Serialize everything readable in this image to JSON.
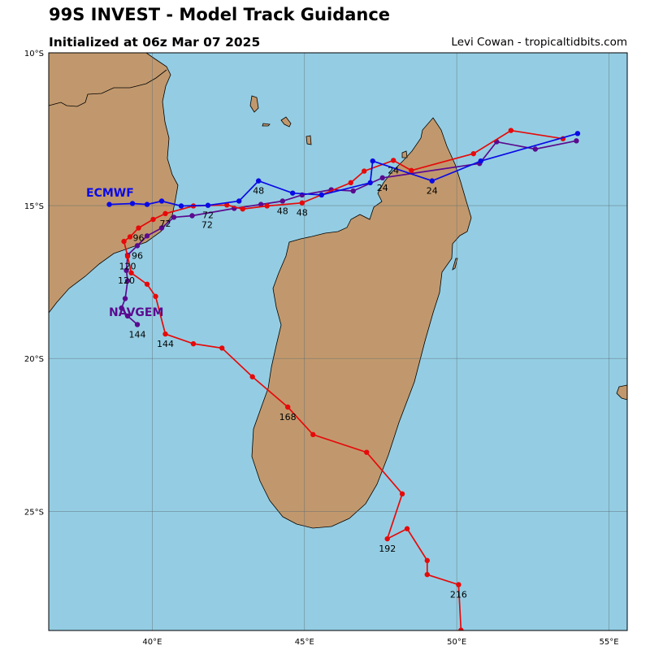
{
  "header": {
    "title": "99S INVEST - Model Track Guidance",
    "subtitle": "Initialized at 06z Mar 07 2025",
    "credit": "Levi Cowan - tropicaltidbits.com"
  },
  "colors": {
    "ocean": "#94cde3",
    "land": "#c1986d",
    "grid": "#5a6a70",
    "ecmwf": "#0a0ae6",
    "navgem": "#5b0a8f",
    "gfs": "#e60a0a"
  },
  "axes": {
    "lon_range": [
      36.6,
      55.6
    ],
    "lat_range": [
      -10.0,
      -28.9
    ],
    "lon_ticks": [
      {
        "value": 40,
        "label": "40°E"
      },
      {
        "value": 45,
        "label": "45°E"
      },
      {
        "value": 50,
        "label": "50°E"
      },
      {
        "value": 55,
        "label": "55°E"
      }
    ],
    "lat_ticks": [
      {
        "value": -10,
        "label": "10°S"
      },
      {
        "value": -15,
        "label": "15°S"
      },
      {
        "value": -20,
        "label": "20°S"
      },
      {
        "value": -25,
        "label": "25°S"
      }
    ]
  },
  "chart_data": {
    "type": "scatter",
    "description_units": "longitude °E, latitude (negative = °S)",
    "series": [
      {
        "name": "ECMWF",
        "color_key": "ecmwf",
        "label": "ECMWF",
        "points": [
          [
            53.97,
            -12.64
          ],
          [
            50.79,
            -13.54
          ],
          [
            49.19,
            -14.19
          ],
          [
            47.24,
            -13.54
          ],
          [
            47.16,
            -14.25
          ],
          [
            45.56,
            -14.65
          ],
          [
            44.61,
            -14.59
          ],
          [
            43.49,
            -14.19
          ],
          [
            42.85,
            -14.85
          ],
          [
            41.83,
            -14.99
          ],
          [
            40.95,
            -15.01
          ],
          [
            40.31,
            -14.85
          ],
          [
            39.83,
            -14.96
          ],
          [
            39.35,
            -14.93
          ],
          [
            38.59,
            -14.96
          ]
        ],
        "hour_labels": [
          {
            "text": "24",
            "lon": 49.19,
            "lat": -14.19
          },
          {
            "text": "48",
            "lon": 43.49,
            "lat": -14.19
          },
          {
            "text": "72",
            "lon": 41.83,
            "lat": -14.99
          }
        ]
      },
      {
        "name": "NAVGEM",
        "color_key": "navgem",
        "label": "NAVGEM",
        "points": [
          [
            53.93,
            -12.88
          ],
          [
            52.58,
            -13.15
          ],
          [
            51.31,
            -12.91
          ],
          [
            50.75,
            -13.62
          ],
          [
            47.56,
            -14.09
          ],
          [
            46.6,
            -14.52
          ],
          [
            45.88,
            -14.48
          ],
          [
            44.92,
            -14.65
          ],
          [
            44.28,
            -14.85
          ],
          [
            43.57,
            -14.96
          ],
          [
            42.69,
            -15.09
          ],
          [
            41.31,
            -15.33
          ],
          [
            40.71,
            -15.38
          ],
          [
            40.31,
            -15.73
          ],
          [
            39.83,
            -15.99
          ],
          [
            39.51,
            -16.31
          ],
          [
            39.19,
            -16.62
          ],
          [
            39.15,
            -17.12
          ],
          [
            39.19,
            -17.46
          ],
          [
            39.11,
            -18.04
          ],
          [
            38.99,
            -18.35
          ],
          [
            39.19,
            -18.61
          ],
          [
            39.51,
            -18.89
          ]
        ],
        "hour_labels": [
          {
            "text": "24",
            "lon": 47.56,
            "lat": -14.09
          },
          {
            "text": "48",
            "lon": 44.28,
            "lat": -14.85
          },
          {
            "text": "72",
            "lon": 41.8,
            "lat": -15.3
          },
          {
            "text": "96",
            "lon": 39.51,
            "lat": -16.31
          },
          {
            "text": "120",
            "lon": 39.15,
            "lat": -17.12
          },
          {
            "text": "144",
            "lon": 39.51,
            "lat": -18.89
          }
        ]
      },
      {
        "name": "",
        "color_key": "gfs",
        "label": "",
        "points": [
          [
            53.49,
            -12.81
          ],
          [
            51.78,
            -12.54
          ],
          [
            50.55,
            -13.3
          ],
          [
            48.51,
            -13.85
          ],
          [
            47.92,
            -13.52
          ],
          [
            46.96,
            -13.87
          ],
          [
            46.52,
            -14.25
          ],
          [
            44.92,
            -14.91
          ],
          [
            43.77,
            -15.01
          ],
          [
            42.97,
            -15.11
          ],
          [
            42.45,
            -14.98
          ],
          [
            41.35,
            -15.01
          ],
          [
            40.43,
            -15.26
          ],
          [
            40.03,
            -15.45
          ],
          [
            39.55,
            -15.73
          ],
          [
            39.27,
            -16.02
          ],
          [
            39.07,
            -16.17
          ],
          [
            39.19,
            -16.66
          ],
          [
            39.31,
            -17.2
          ],
          [
            39.83,
            -17.57
          ],
          [
            40.11,
            -17.97
          ],
          [
            40.43,
            -19.2
          ],
          [
            41.35,
            -19.52
          ],
          [
            42.29,
            -19.66
          ],
          [
            43.29,
            -20.6
          ],
          [
            44.45,
            -21.59
          ],
          [
            45.28,
            -22.49
          ],
          [
            47.04,
            -23.07
          ],
          [
            48.21,
            -24.43
          ],
          [
            47.72,
            -25.9
          ],
          [
            48.37,
            -25.57
          ],
          [
            49.03,
            -26.61
          ],
          [
            49.03,
            -27.07
          ],
          [
            50.06,
            -27.4
          ],
          [
            50.14,
            -28.89
          ]
        ],
        "hour_labels": [
          {
            "text": "24",
            "lon": 47.92,
            "lat": -13.52
          },
          {
            "text": "48",
            "lon": 44.92,
            "lat": -14.91
          },
          {
            "text": "72",
            "lon": 40.43,
            "lat": -15.26
          },
          {
            "text": "96",
            "lon": 39.55,
            "lat": -15.73
          },
          {
            "text": "120",
            "lon": 39.19,
            "lat": -16.66
          },
          {
            "text": "144",
            "lon": 40.43,
            "lat": -19.2
          },
          {
            "text": "168",
            "lon": 44.45,
            "lat": -21.59
          },
          {
            "text": "192",
            "lon": 47.72,
            "lat": -25.9
          },
          {
            "text": "216",
            "lon": 50.06,
            "lat": -27.4
          }
        ]
      }
    ]
  }
}
